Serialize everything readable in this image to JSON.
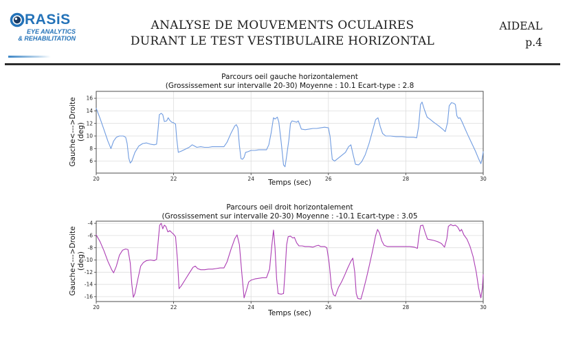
{
  "header": {
    "logo": {
      "brand_text": "RASiS",
      "brand_full": "ORASIS",
      "tagline_line1": "EYE ANALYTICS",
      "tagline_line2": "& REHABILITATION",
      "brand_color": "#2372b8"
    },
    "title_line1": "ANALYSE DE MOUVEMENTS OCULAIRES",
    "title_line2": "DURANT LE TEST VESTIBULAIRE HORIZONTAL",
    "doc_label": "AIDEAL",
    "page_number": "p.4"
  },
  "chart_data": [
    {
      "type": "line",
      "title": "Parcours oeil gauche horizontalement",
      "subtitle": "(Grossissement sur intervalle 20-30) Moyenne : 10.1 Ecart-type : 2.8",
      "mean": 10.1,
      "std": 2.8,
      "xlabel": "Temps (sec)",
      "ylabel_line1": "Gauche<--->Droite",
      "ylabel_line2": "(deg)",
      "color": "#6f9be0",
      "grid": true,
      "xlim": [
        20,
        30
      ],
      "ylim": [
        4.1,
        17.1
      ],
      "xticks": [
        20,
        22,
        24,
        26,
        28,
        30
      ],
      "yticks": [
        16,
        14,
        12,
        10,
        8,
        6
      ],
      "points": [
        [
          20.0,
          14.4
        ],
        [
          20.05,
          13.6
        ],
        [
          20.1,
          12.8
        ],
        [
          20.2,
          11.0
        ],
        [
          20.3,
          9.2
        ],
        [
          20.38,
          8.0
        ],
        [
          20.45,
          9.2
        ],
        [
          20.52,
          9.8
        ],
        [
          20.6,
          10.0
        ],
        [
          20.7,
          10.0
        ],
        [
          20.76,
          9.8
        ],
        [
          20.8,
          8.8
        ],
        [
          20.84,
          6.5
        ],
        [
          20.88,
          5.7
        ],
        [
          20.92,
          6.0
        ],
        [
          21.0,
          7.4
        ],
        [
          21.1,
          8.4
        ],
        [
          21.2,
          8.8
        ],
        [
          21.3,
          8.9
        ],
        [
          21.4,
          8.7
        ],
        [
          21.5,
          8.6
        ],
        [
          21.56,
          8.7
        ],
        [
          21.6,
          11.2
        ],
        [
          21.63,
          13.4
        ],
        [
          21.68,
          13.6
        ],
        [
          21.72,
          13.4
        ],
        [
          21.76,
          12.3
        ],
        [
          21.82,
          12.4
        ],
        [
          21.86,
          12.9
        ],
        [
          21.9,
          12.5
        ],
        [
          21.95,
          12.2
        ],
        [
          22.0,
          12.1
        ],
        [
          22.05,
          11.9
        ],
        [
          22.08,
          9.6
        ],
        [
          22.12,
          7.4
        ],
        [
          22.2,
          7.6
        ],
        [
          22.3,
          7.9
        ],
        [
          22.4,
          8.2
        ],
        [
          22.48,
          8.6
        ],
        [
          22.54,
          8.4
        ],
        [
          22.6,
          8.2
        ],
        [
          22.7,
          8.3
        ],
        [
          22.8,
          8.2
        ],
        [
          22.9,
          8.2
        ],
        [
          23.0,
          8.3
        ],
        [
          23.1,
          8.3
        ],
        [
          23.2,
          8.3
        ],
        [
          23.3,
          8.3
        ],
        [
          23.38,
          9.0
        ],
        [
          23.48,
          10.4
        ],
        [
          23.58,
          11.6
        ],
        [
          23.62,
          11.8
        ],
        [
          23.66,
          11.3
        ],
        [
          23.7,
          8.5
        ],
        [
          23.74,
          6.4
        ],
        [
          23.78,
          6.3
        ],
        [
          23.82,
          6.6
        ],
        [
          23.86,
          7.4
        ],
        [
          23.92,
          7.5
        ],
        [
          24.0,
          7.7
        ],
        [
          24.1,
          7.7
        ],
        [
          24.2,
          7.8
        ],
        [
          24.3,
          7.8
        ],
        [
          24.4,
          7.8
        ],
        [
          24.46,
          8.6
        ],
        [
          24.52,
          10.5
        ],
        [
          24.58,
          12.9
        ],
        [
          24.62,
          12.7
        ],
        [
          24.68,
          13.0
        ],
        [
          24.72,
          12.2
        ],
        [
          24.78,
          9.0
        ],
        [
          24.84,
          5.4
        ],
        [
          24.88,
          5.1
        ],
        [
          24.92,
          6.8
        ],
        [
          24.98,
          9.5
        ],
        [
          25.02,
          12.0
        ],
        [
          25.06,
          12.4
        ],
        [
          25.12,
          12.3
        ],
        [
          25.18,
          12.2
        ],
        [
          25.22,
          12.4
        ],
        [
          25.26,
          11.8
        ],
        [
          25.3,
          11.1
        ],
        [
          25.4,
          11.0
        ],
        [
          25.5,
          11.1
        ],
        [
          25.6,
          11.2
        ],
        [
          25.7,
          11.2
        ],
        [
          25.8,
          11.3
        ],
        [
          25.9,
          11.4
        ],
        [
          26.0,
          11.3
        ],
        [
          26.04,
          10.0
        ],
        [
          26.1,
          6.3
        ],
        [
          26.16,
          6.0
        ],
        [
          26.24,
          6.4
        ],
        [
          26.34,
          6.9
        ],
        [
          26.44,
          7.4
        ],
        [
          26.52,
          8.3
        ],
        [
          26.58,
          8.6
        ],
        [
          26.64,
          7.0
        ],
        [
          26.7,
          5.5
        ],
        [
          26.78,
          5.4
        ],
        [
          26.86,
          5.9
        ],
        [
          26.95,
          7.0
        ],
        [
          27.05,
          8.8
        ],
        [
          27.15,
          11.0
        ],
        [
          27.22,
          12.6
        ],
        [
          27.28,
          12.9
        ],
        [
          27.34,
          11.5
        ],
        [
          27.4,
          10.4
        ],
        [
          27.48,
          10.0
        ],
        [
          27.6,
          10.0
        ],
        [
          27.75,
          9.9
        ],
        [
          27.9,
          9.9
        ],
        [
          28.05,
          9.8
        ],
        [
          28.2,
          9.8
        ],
        [
          28.28,
          9.7
        ],
        [
          28.33,
          11.5
        ],
        [
          28.38,
          15.0
        ],
        [
          28.42,
          15.4
        ],
        [
          28.48,
          14.2
        ],
        [
          28.55,
          13.0
        ],
        [
          28.62,
          12.7
        ],
        [
          28.72,
          12.2
        ],
        [
          28.85,
          11.6
        ],
        [
          28.95,
          11.1
        ],
        [
          29.02,
          10.7
        ],
        [
          29.08,
          12.2
        ],
        [
          29.12,
          14.8
        ],
        [
          29.18,
          15.3
        ],
        [
          29.24,
          15.2
        ],
        [
          29.28,
          15.0
        ],
        [
          29.32,
          13.2
        ],
        [
          29.36,
          12.8
        ],
        [
          29.4,
          12.9
        ],
        [
          29.45,
          12.3
        ],
        [
          29.52,
          11.3
        ],
        [
          29.6,
          10.2
        ],
        [
          29.7,
          8.9
        ],
        [
          29.8,
          7.6
        ],
        [
          29.88,
          6.4
        ],
        [
          29.94,
          5.6
        ],
        [
          29.97,
          6.3
        ],
        [
          30.0,
          7.5
        ]
      ]
    },
    {
      "type": "line",
      "title": "Parcours oeil droit horizontalement",
      "subtitle": "(Grossissement sur intervalle 20-30) Moyenne : -10.1 Ecart-type : 3.05",
      "mean": -10.1,
      "std": 3.05,
      "xlabel": "Temps (sec)",
      "ylabel_line1": "Gauche<--->Droite",
      "ylabel_line2": "(deg)",
      "color": "#ab3cb3",
      "grid": true,
      "xlim": [
        20,
        30
      ],
      "ylim": [
        -16.8,
        -3.65
      ],
      "xticks": [
        20,
        22,
        24,
        26,
        28,
        30
      ],
      "yticks": [
        -4,
        -6,
        -8,
        -10,
        -12,
        -14,
        -16
      ],
      "points": [
        [
          20.0,
          -5.9
        ],
        [
          20.1,
          -7.0
        ],
        [
          20.2,
          -8.5
        ],
        [
          20.3,
          -10.2
        ],
        [
          20.4,
          -11.6
        ],
        [
          20.45,
          -12.1
        ],
        [
          20.52,
          -11.0
        ],
        [
          20.6,
          -9.2
        ],
        [
          20.68,
          -8.4
        ],
        [
          20.76,
          -8.2
        ],
        [
          20.82,
          -8.3
        ],
        [
          20.88,
          -10.5
        ],
        [
          20.92,
          -14.0
        ],
        [
          20.96,
          -16.1
        ],
        [
          21.0,
          -15.5
        ],
        [
          21.08,
          -13.0
        ],
        [
          21.15,
          -11.0
        ],
        [
          21.22,
          -10.4
        ],
        [
          21.3,
          -10.1
        ],
        [
          21.4,
          -10.0
        ],
        [
          21.5,
          -10.1
        ],
        [
          21.56,
          -9.9
        ],
        [
          21.6,
          -7.0
        ],
        [
          21.64,
          -4.3
        ],
        [
          21.68,
          -4.0
        ],
        [
          21.72,
          -4.9
        ],
        [
          21.76,
          -4.3
        ],
        [
          21.8,
          -4.5
        ],
        [
          21.85,
          -5.4
        ],
        [
          21.9,
          -5.2
        ],
        [
          21.95,
          -5.5
        ],
        [
          22.0,
          -5.8
        ],
        [
          22.05,
          -6.2
        ],
        [
          22.1,
          -10.0
        ],
        [
          22.14,
          -14.7
        ],
        [
          22.2,
          -14.2
        ],
        [
          22.3,
          -13.2
        ],
        [
          22.4,
          -12.2
        ],
        [
          22.5,
          -11.2
        ],
        [
          22.56,
          -11.0
        ],
        [
          22.62,
          -11.4
        ],
        [
          22.7,
          -11.6
        ],
        [
          22.8,
          -11.6
        ],
        [
          22.9,
          -11.5
        ],
        [
          23.0,
          -11.5
        ],
        [
          23.1,
          -11.4
        ],
        [
          23.2,
          -11.3
        ],
        [
          23.3,
          -11.3
        ],
        [
          23.38,
          -10.3
        ],
        [
          23.48,
          -8.3
        ],
        [
          23.58,
          -6.5
        ],
        [
          23.64,
          -5.9
        ],
        [
          23.7,
          -7.5
        ],
        [
          23.76,
          -12.0
        ],
        [
          23.82,
          -16.2
        ],
        [
          23.88,
          -15.0
        ],
        [
          23.94,
          -13.6
        ],
        [
          24.0,
          -13.3
        ],
        [
          24.1,
          -13.1
        ],
        [
          24.2,
          -13.0
        ],
        [
          24.3,
          -12.9
        ],
        [
          24.4,
          -12.9
        ],
        [
          24.48,
          -11.5
        ],
        [
          24.54,
          -7.5
        ],
        [
          24.58,
          -5.1
        ],
        [
          24.62,
          -8.0
        ],
        [
          24.66,
          -13.0
        ],
        [
          24.7,
          -15.5
        ],
        [
          24.78,
          -15.6
        ],
        [
          24.84,
          -15.5
        ],
        [
          24.88,
          -12.0
        ],
        [
          24.92,
          -7.5
        ],
        [
          24.96,
          -6.2
        ],
        [
          25.02,
          -6.1
        ],
        [
          25.08,
          -6.4
        ],
        [
          25.12,
          -6.3
        ],
        [
          25.18,
          -7.2
        ],
        [
          25.24,
          -7.7
        ],
        [
          25.32,
          -7.7
        ],
        [
          25.4,
          -7.8
        ],
        [
          25.5,
          -7.8
        ],
        [
          25.6,
          -7.9
        ],
        [
          25.68,
          -7.7
        ],
        [
          25.74,
          -7.6
        ],
        [
          25.8,
          -7.8
        ],
        [
          25.9,
          -7.8
        ],
        [
          25.96,
          -8.0
        ],
        [
          26.02,
          -10.5
        ],
        [
          26.08,
          -14.5
        ],
        [
          26.13,
          -15.7
        ],
        [
          26.18,
          -15.9
        ],
        [
          26.26,
          -14.5
        ],
        [
          26.34,
          -13.6
        ],
        [
          26.42,
          -12.5
        ],
        [
          26.5,
          -11.3
        ],
        [
          26.58,
          -10.2
        ],
        [
          26.63,
          -9.7
        ],
        [
          26.68,
          -12.0
        ],
        [
          26.72,
          -15.5
        ],
        [
          26.76,
          -16.3
        ],
        [
          26.84,
          -16.4
        ],
        [
          26.9,
          -15.0
        ],
        [
          26.98,
          -13.0
        ],
        [
          27.06,
          -10.8
        ],
        [
          27.14,
          -8.5
        ],
        [
          27.22,
          -6.0
        ],
        [
          27.27,
          -5.0
        ],
        [
          27.32,
          -5.6
        ],
        [
          27.38,
          -6.9
        ],
        [
          27.44,
          -7.6
        ],
        [
          27.52,
          -7.8
        ],
        [
          27.65,
          -7.8
        ],
        [
          27.8,
          -7.8
        ],
        [
          27.95,
          -7.8
        ],
        [
          28.1,
          -7.8
        ],
        [
          28.22,
          -7.9
        ],
        [
          28.3,
          -8.1
        ],
        [
          28.34,
          -6.0
        ],
        [
          28.38,
          -4.4
        ],
        [
          28.44,
          -4.3
        ],
        [
          28.5,
          -5.5
        ],
        [
          28.56,
          -6.6
        ],
        [
          28.64,
          -6.7
        ],
        [
          28.72,
          -6.8
        ],
        [
          28.82,
          -7.0
        ],
        [
          28.92,
          -7.3
        ],
        [
          29.0,
          -7.9
        ],
        [
          29.06,
          -6.5
        ],
        [
          29.1,
          -4.5
        ],
        [
          29.16,
          -4.2
        ],
        [
          29.22,
          -4.4
        ],
        [
          29.28,
          -4.3
        ],
        [
          29.34,
          -4.6
        ],
        [
          29.4,
          -5.3
        ],
        [
          29.44,
          -5.0
        ],
        [
          29.5,
          -5.9
        ],
        [
          29.58,
          -6.6
        ],
        [
          29.66,
          -7.8
        ],
        [
          29.74,
          -9.5
        ],
        [
          29.82,
          -12.0
        ],
        [
          29.88,
          -14.5
        ],
        [
          29.94,
          -16.2
        ],
        [
          29.98,
          -14.5
        ],
        [
          30.0,
          -12.4
        ]
      ]
    }
  ]
}
